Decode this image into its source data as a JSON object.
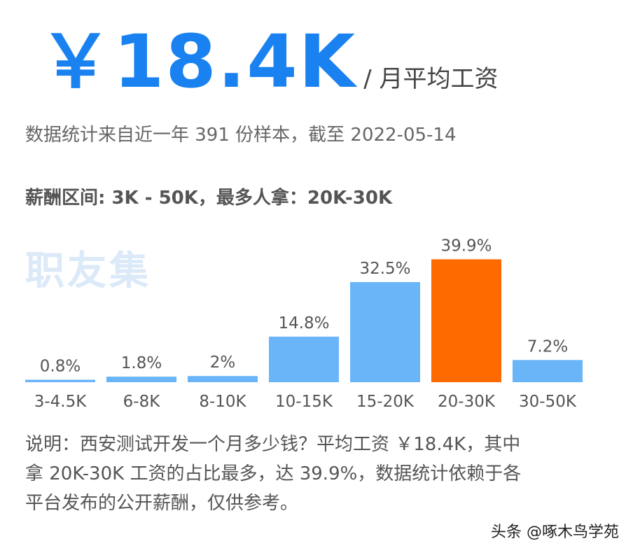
{
  "header": {
    "value": "￥18.4K",
    "unit": "/ 月平均工资"
  },
  "stats_line": "数据统计来自近一年 391 份样本，截至 2022-05-14",
  "range_line": "薪酬区间: 3K - 50K，最多人拿：20K-30K",
  "watermark": "职友集",
  "chart_data": {
    "type": "bar",
    "categories": [
      "3-4.5K",
      "6-8K",
      "8-10K",
      "10-15K",
      "15-20K",
      "20-30K",
      "30-50K"
    ],
    "values": [
      0.8,
      1.8,
      2,
      14.8,
      32.5,
      39.9,
      7.2
    ],
    "labels": [
      "0.8%",
      "1.8%",
      "2%",
      "14.8%",
      "32.5%",
      "39.9%",
      "7.2%"
    ],
    "unit": "%",
    "highlight_index": 5,
    "colors": {
      "bar": "#6ab4f8",
      "highlight": "#ff6a00",
      "label": "#555555"
    },
    "ylim": [
      0,
      40
    ],
    "grid": false,
    "legend": "none"
  },
  "note": {
    "line1": "说明：西安测试开发一个月多少钱？平均工资 ￥18.4K，其中",
    "line2": "拿 20K-30K 工资的占比最多，达 39.9%，数据统计依赖于各",
    "line3": "平台发布的公开薪酬，仅供参考。"
  },
  "credit": "头条 @啄木鸟学苑"
}
